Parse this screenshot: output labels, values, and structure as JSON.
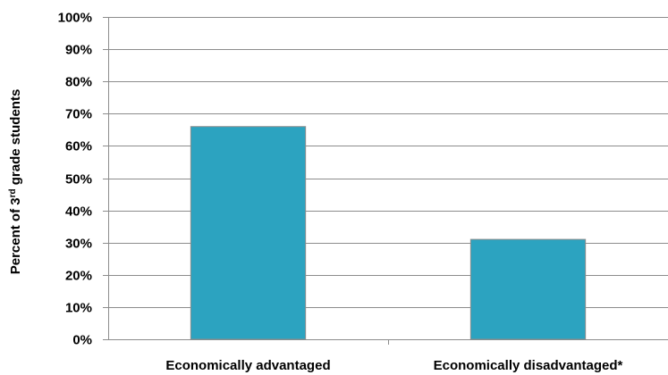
{
  "chart_data": {
    "type": "bar",
    "title": "",
    "xlabel": "",
    "ylabel": "Percent of 3rd grade students",
    "ylabel_parts": {
      "before": "Percent of 3",
      "superscript": "rd",
      "after": " grade students"
    },
    "categories": [
      "Economically advantaged",
      "Economically disadvantaged*"
    ],
    "values": [
      66,
      31
    ],
    "ylim": [
      0,
      100
    ],
    "yticks": [
      "0%",
      "10%",
      "20%",
      "30%",
      "40%",
      "50%",
      "60%",
      "70%",
      "80%",
      "90%",
      "100%"
    ],
    "bar_color": "#2ca3c0",
    "grid": true,
    "legend": "none"
  }
}
